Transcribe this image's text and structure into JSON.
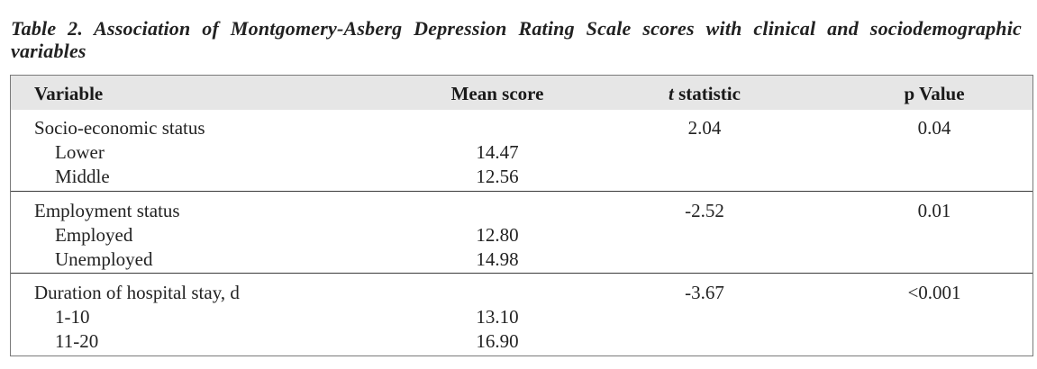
{
  "caption": {
    "label": "Table 2.",
    "text": "Association of Montgomery-Asberg Depression Rating Scale scores with clinical and sociodemographic variables"
  },
  "table": {
    "headers": {
      "variable": "Variable",
      "mean_score": "Mean score",
      "t_letter": "t",
      "t_rest": " statistic",
      "p_value": "p Value"
    },
    "groups": [
      {
        "name": "Socio-economic status",
        "t": "2.04",
        "p": "0.04",
        "rows": [
          {
            "label": "Lower",
            "mean": "14.47"
          },
          {
            "label": "Middle",
            "mean": "12.56"
          }
        ]
      },
      {
        "name": "Employment status",
        "t": "-2.52",
        "p": "0.01",
        "rows": [
          {
            "label": "Employed",
            "mean": "12.80"
          },
          {
            "label": "Unemployed",
            "mean": "14.98"
          }
        ]
      },
      {
        "name": "Duration of hospital stay, d",
        "t": "-3.67",
        "p": "<0.001",
        "rows": [
          {
            "label": "1-10",
            "mean": "13.10"
          },
          {
            "label": "11-20",
            "mean": "16.90"
          }
        ]
      }
    ]
  }
}
